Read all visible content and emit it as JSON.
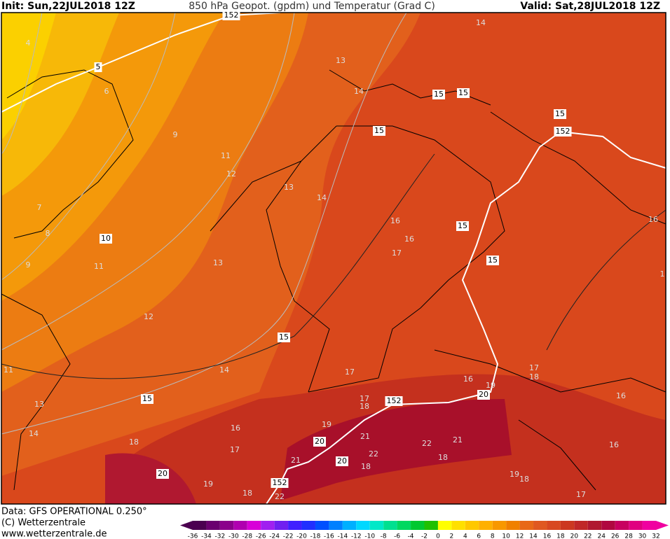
{
  "header": {
    "init": "Init: Sun,22JUL2018 12Z",
    "title": "850 hPa Geopot. (gpdm) und Temperatur (Grad C)",
    "valid": "Valid: Sat,28JUL2018 12Z"
  },
  "footer": {
    "data": "Data: GFS OPERATIONAL 0.250°",
    "copyright": "(C) Wetterzentrale",
    "url": "www.wetterzentrale.de"
  },
  "scale": {
    "ticks": [
      -36,
      -34,
      -32,
      -30,
      -28,
      -26,
      -24,
      -22,
      -20,
      -18,
      -16,
      -14,
      -12,
      -10,
      -8,
      -6,
      -4,
      -2,
      0,
      2,
      4,
      6,
      8,
      10,
      12,
      14,
      16,
      18,
      20,
      22,
      24,
      26,
      28,
      30,
      32
    ],
    "colors": [
      "#4b0050",
      "#6a006f",
      "#8b008b",
      "#b000b0",
      "#d800d8",
      "#a020f0",
      "#7020f0",
      "#4020ff",
      "#2030ff",
      "#0050ff",
      "#0080ff",
      "#00b0ff",
      "#00d8ff",
      "#00e8c8",
      "#00e090",
      "#00d860",
      "#00c830",
      "#20c000",
      "#ffff00",
      "#ffe000",
      "#ffc800",
      "#ffb000",
      "#f89800",
      "#f08000",
      "#e86818",
      "#e05820",
      "#d84820",
      "#cc3820",
      "#c02828",
      "#b01830",
      "#b00840",
      "#c80060",
      "#e00080",
      "#f000a0"
    ]
  },
  "labels": [
    4,
    152,
    5,
    6,
    9,
    13,
    14,
    14,
    15,
    15,
    15,
    152,
    15,
    11,
    12,
    13,
    14,
    7,
    8,
    10,
    16,
    15,
    16,
    16,
    17,
    15,
    9,
    11,
    13,
    12,
    15,
    11,
    14,
    17,
    17,
    18,
    16,
    19,
    20,
    16,
    13,
    15,
    17,
    18,
    152,
    16,
    19,
    21,
    14,
    18,
    17,
    20,
    22,
    22,
    21,
    16,
    18,
    21,
    20,
    18,
    20,
    19,
    19,
    18,
    152,
    18,
    22,
    17,
    1
  ]
}
